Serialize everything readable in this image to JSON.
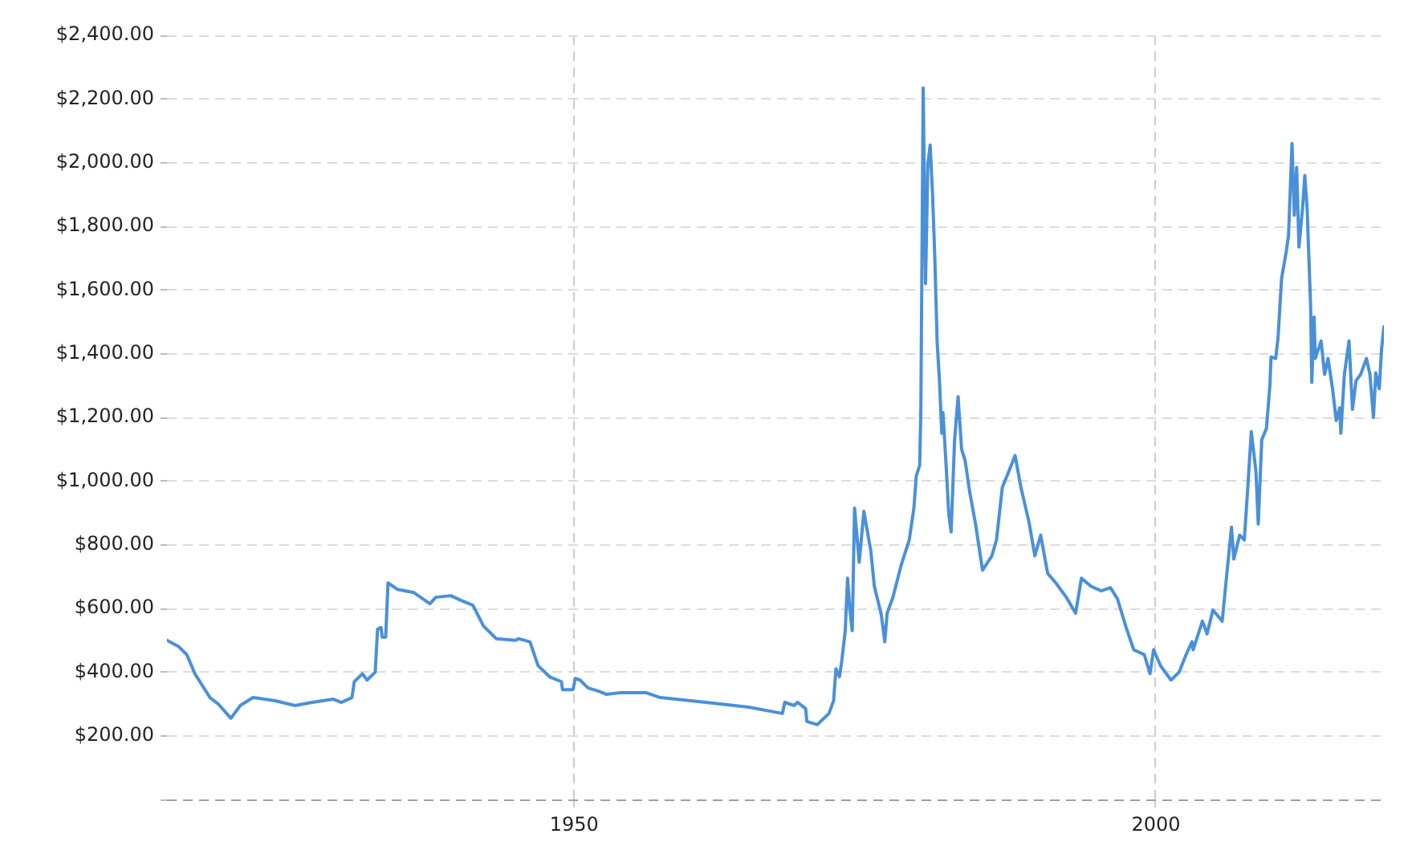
{
  "chart_data": {
    "type": "line",
    "x": [
      1915.0,
      1916.0,
      1916.7,
      1917.4,
      1918.0,
      1918.7,
      1919.4,
      1920.5,
      1921.3,
      1922.4,
      1924.3,
      1926.0,
      1927.5,
      1929.3,
      1930.0,
      1930.9,
      1931.1,
      1931.8,
      1932.2,
      1932.9,
      1933.1,
      1933.4,
      1933.5,
      1933.8,
      1934.0,
      1934.8,
      1936.2,
      1937.6,
      1938.1,
      1939.4,
      1940.3,
      1941.3,
      1942.2,
      1943.3,
      1945.0,
      1945.2,
      1946.2,
      1946.9,
      1947.9,
      1948.9,
      1949.0,
      1949.9,
      1950.1,
      1950.5,
      1951.2,
      1952.1,
      1952.8,
      1953.9,
      1956.2,
      1957.4,
      1961.3,
      1965.0,
      1967.9,
      1968.1,
      1968.9,
      1969.2,
      1969.9,
      1970.0,
      1970.9,
      1971.9,
      1972.3,
      1972.5,
      1972.8,
      1973.0,
      1973.3,
      1973.5,
      1973.7,
      1973.9,
      1974.1,
      1974.5,
      1974.9,
      1975.5,
      1975.8,
      1976.4,
      1976.7,
      1976.9,
      1977.4,
      1978.1,
      1978.8,
      1979.2,
      1979.4,
      1979.7,
      1979.8,
      1980.0,
      1980.2,
      1980.4,
      1980.6,
      1980.8,
      1981.0,
      1981.2,
      1981.4,
      1981.6,
      1981.7,
      1982.0,
      1982.2,
      1982.4,
      1982.7,
      1983.0,
      1983.3,
      1983.6,
      1984.0,
      1984.5,
      1985.1,
      1985.9,
      1986.3,
      1986.8,
      1987.3,
      1987.9,
      1988.4,
      1989.1,
      1989.6,
      1990.1,
      1990.7,
      1991.4,
      1992.3,
      1993.1,
      1993.6,
      1994.4,
      1995.3,
      1996.1,
      1996.7,
      1997.4,
      1998.1,
      1999.0,
      1999.5,
      1999.8,
      2000.4,
      2001.3,
      2002.0,
      2002.6,
      2003.1,
      2003.2,
      2004.0,
      2004.4,
      2004.9,
      2005.7,
      2006.1,
      2006.5,
      2006.7,
      2007.2,
      2007.6,
      2007.9,
      2008.2,
      2008.6,
      2008.8,
      2009.1,
      2009.5,
      2009.8,
      2009.9,
      2010.3,
      2010.5,
      2010.8,
      2011.2,
      2011.4,
      2011.7,
      2011.9,
      2012.1,
      2012.3,
      2012.6,
      2012.8,
      2013.0,
      2013.3,
      2013.4,
      2013.6,
      2013.7,
      2014.2,
      2014.5,
      2014.8,
      2015.2,
      2015.5,
      2015.8,
      2015.9,
      2016.2,
      2016.6,
      2016.9,
      2017.2,
      2017.6,
      2018.1,
      2018.4,
      2018.7,
      2018.9,
      2019.2,
      2019.4,
      2019.6
    ],
    "series": [
      {
        "color": "#4a90d9",
        "values": [
          500,
          480,
          455,
          395,
          360,
          320,
          300,
          255,
          295,
          320,
          310,
          295,
          305,
          315,
          305,
          320,
          370,
          395,
          375,
          400,
          535,
          540,
          510,
          510,
          680,
          660,
          650,
          615,
          635,
          640,
          625,
          610,
          545,
          505,
          500,
          505,
          495,
          420,
          385,
          370,
          345,
          345,
          380,
          375,
          350,
          340,
          330,
          335,
          335,
          320,
          305,
          290,
          270,
          305,
          295,
          305,
          285,
          245,
          235,
          270,
          310,
          410,
          385,
          435,
          530,
          695,
          595,
          530,
          915,
          745,
          905,
          780,
          670,
          580,
          495,
          585,
          635,
          735,
          815,
          915,
          1015,
          1050,
          1230,
          2235,
          1620,
          1995,
          2055,
          1905,
          1700,
          1435,
          1315,
          1150,
          1215,
          1030,
          895,
          840,
          1130,
          1265,
          1100,
          1065,
          965,
          865,
          720,
          765,
          815,
          980,
          1025,
          1080,
          980,
          870,
          765,
          830,
          710,
          680,
          635,
          585,
          695,
          670,
          655,
          665,
          630,
          545,
          470,
          455,
          395,
          470,
          420,
          375,
          400,
          455,
          495,
          470,
          560,
          520,
          595,
          560,
          710,
          855,
          755,
          830,
          815,
          980,
          1155,
          1030,
          865,
          1130,
          1165,
          1300,
          1390,
          1385,
          1450,
          1635,
          1720,
          1770,
          2060,
          1835,
          1985,
          1735,
          1855,
          1960,
          1855,
          1550,
          1310,
          1515,
          1385,
          1440,
          1335,
          1385,
          1285,
          1190,
          1230,
          1150,
          1335,
          1440,
          1225,
          1315,
          1335,
          1385,
          1335,
          1200,
          1340,
          1290,
          1415,
          1485
        ]
      }
    ],
    "xlim": [
      1915,
      2019.6
    ],
    "xticks": [
      1950,
      2000
    ],
    "ylim": [
      0,
      2400
    ],
    "yticks": [
      {
        "value": 0,
        "label": null
      },
      {
        "value": 200,
        "label": "$200.00"
      },
      {
        "value": 400,
        "label": "$400.00"
      },
      {
        "value": 600,
        "label": "$600.00"
      },
      {
        "value": 800,
        "label": "$800.00"
      },
      {
        "value": 1000,
        "label": "$1,000.00"
      },
      {
        "value": 1200,
        "label": "$1,200.00"
      },
      {
        "value": 1400,
        "label": "$1,400.00"
      },
      {
        "value": 1600,
        "label": "$1,600.00"
      },
      {
        "value": 1800,
        "label": "$1,800.00"
      },
      {
        "value": 2000,
        "label": "$2,000.00"
      },
      {
        "value": 2200,
        "label": "$2,200.00"
      },
      {
        "value": 2400,
        "label": "$2,400.00"
      }
    ],
    "grid": true,
    "marker": "none",
    "line_style": "solid"
  }
}
